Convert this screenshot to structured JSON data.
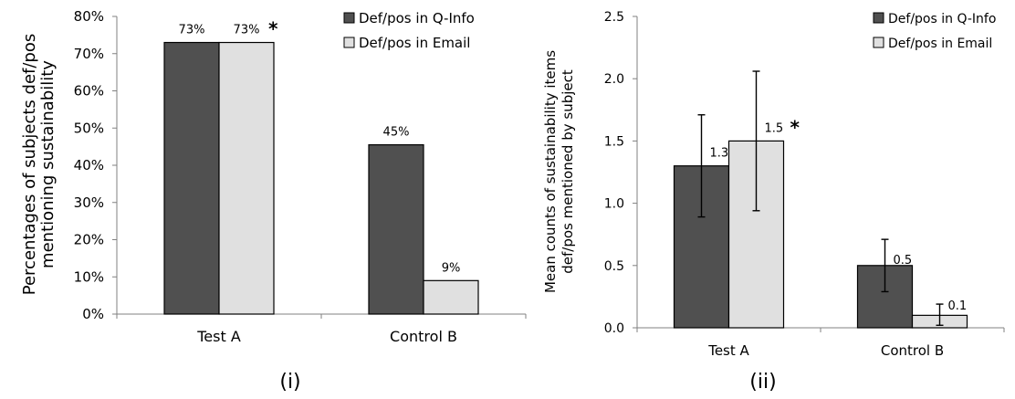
{
  "colors": {
    "series_0": "#505050",
    "series_1": "#e0e0e0"
  },
  "chart_data": [
    {
      "type": "bar",
      "panel_label": "(i)",
      "ylabel_lines": [
        "Percentages of subjects def/pos",
        "mentioning sustainability"
      ],
      "categories": [
        "Test A",
        "Control B"
      ],
      "series": [
        {
          "name": "Def/pos in Q-Info",
          "values": [
            73,
            45.5
          ],
          "labels": [
            "73%",
            "45%"
          ]
        },
        {
          "name": "Def/pos in Email",
          "values": [
            73,
            9
          ],
          "labels": [
            "73%",
            "9%"
          ]
        }
      ],
      "ylim": [
        0,
        80
      ],
      "yticks": [
        "0%",
        "10%",
        "20%",
        "30%",
        "40%",
        "50%",
        "60%",
        "70%",
        "80%"
      ],
      "significance_mark": "*",
      "legend": "top-right",
      "grid": false
    },
    {
      "type": "bar",
      "panel_label": "(ii)",
      "ylabel_lines": [
        "Mean counts of sustainability items",
        "def/pos mentioned by subject"
      ],
      "categories": [
        "Test A",
        "Control B"
      ],
      "series": [
        {
          "name": "Def/pos in Q-Info",
          "values": [
            1.3,
            0.5
          ],
          "labels": [
            "1.3",
            "0.5"
          ],
          "err_low": [
            0.89,
            0.29
          ],
          "err_high": [
            1.71,
            0.71
          ]
        },
        {
          "name": "Def/pos in Email",
          "values": [
            1.5,
            0.1
          ],
          "labels": [
            "1.5",
            "0.1"
          ],
          "err_low": [
            0.94,
            0.02
          ],
          "err_high": [
            2.06,
            0.19
          ]
        }
      ],
      "ylim": [
        0,
        2.5
      ],
      "yticks": [
        "0.0",
        "0.5",
        "1.0",
        "1.5",
        "2.0",
        "2.5"
      ],
      "significance_mark": "*",
      "legend": "top-right",
      "grid": false
    }
  ]
}
